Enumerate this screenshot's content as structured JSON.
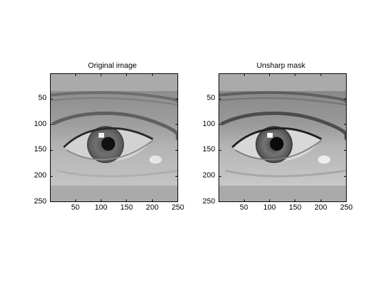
{
  "figure": {
    "panels": [
      {
        "title": "Original image",
        "x_ticks": [
          "50",
          "100",
          "150",
          "200",
          "250"
        ],
        "y_ticks": [
          "50",
          "100",
          "150",
          "200",
          "250"
        ],
        "image": {
          "content": "grayscale close-up photo of a human eye",
          "sharpened": false
        }
      },
      {
        "title": "Unsharp mask",
        "x_ticks": [
          "50",
          "100",
          "150",
          "200",
          "250"
        ],
        "y_ticks": [
          "50",
          "100",
          "150",
          "200",
          "250"
        ],
        "image": {
          "content": "grayscale close-up photo of a human eye",
          "sharpened": true
        }
      }
    ],
    "colors": {
      "padding": "#aaaaaa",
      "background": "#ffffff"
    }
  }
}
